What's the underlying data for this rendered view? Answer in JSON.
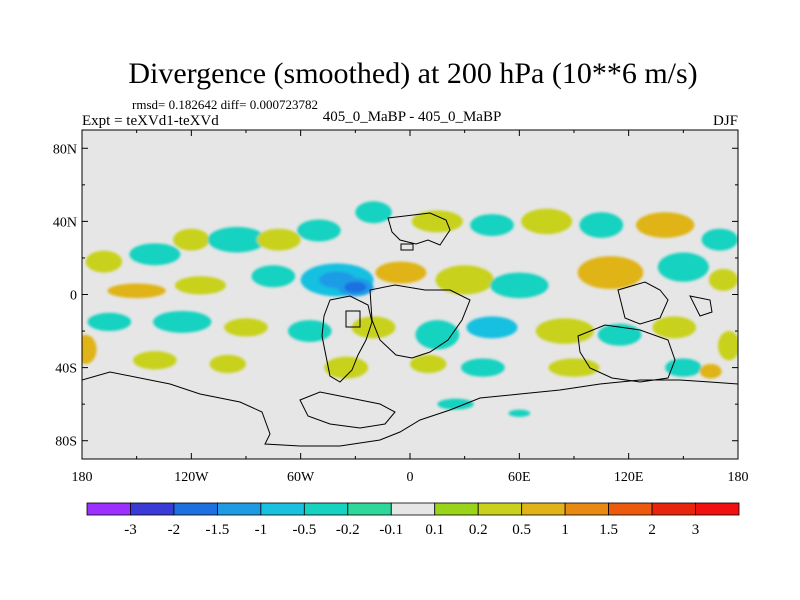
{
  "chart_data": {
    "type": "heatmap",
    "title": "Divergence (smoothed) at 200 hPa (10**6 m/s)",
    "stats_line": "rmsd= 0.182642 diff= 0.000723782",
    "experiment_label": "Expt = teXVd1-teXVd",
    "comparison_label": "405_0_MaBP - 405_0_MaBP",
    "season_label": "DJF",
    "xlim": [
      -180,
      180
    ],
    "ylim": [
      -90,
      90
    ],
    "x_ticks": [
      {
        "lon": -180,
        "label": "180"
      },
      {
        "lon": -120,
        "label": "120W"
      },
      {
        "lon": -60,
        "label": "60W"
      },
      {
        "lon": 0,
        "label": "0"
      },
      {
        "lon": 60,
        "label": "60E"
      },
      {
        "lon": 120,
        "label": "120E"
      },
      {
        "lon": 180,
        "label": "180"
      }
    ],
    "y_ticks": [
      {
        "lat": 80,
        "label": "80N"
      },
      {
        "lat": 40,
        "label": "40N"
      },
      {
        "lat": 0,
        "label": "0"
      },
      {
        "lat": -40,
        "label": "40S"
      },
      {
        "lat": -80,
        "label": "80S"
      }
    ],
    "colorbar": {
      "labels": [
        "-3",
        "-2",
        "-1.5",
        "-1",
        "-0.5",
        "-0.2",
        "-0.1",
        "0.1",
        "0.2",
        "0.5",
        "1",
        "1.5",
        "2",
        "3"
      ],
      "colors": [
        "#9b30ff",
        "#3a3ad6",
        "#1e6fe0",
        "#1f9be6",
        "#19c0e0",
        "#16d2c0",
        "#2ed89a",
        "#e6e6e6",
        "#9ad41a",
        "#c8d21c",
        "#e0b418",
        "#e88a12",
        "#ec5a0e",
        "#e8240c",
        "#f01010"
      ]
    },
    "anomaly_blobs": [
      {
        "lon": -168,
        "lat": 18,
        "rx": 10,
        "ry": 6,
        "value": 0.3
      },
      {
        "lon": -140,
        "lat": 22,
        "rx": 14,
        "ry": 6,
        "value": -0.3
      },
      {
        "lon": -120,
        "lat": 30,
        "rx": 10,
        "ry": 6,
        "value": 0.3
      },
      {
        "lon": -95,
        "lat": 30,
        "rx": 16,
        "ry": 7,
        "value": -0.3
      },
      {
        "lon": -72,
        "lat": 30,
        "rx": 12,
        "ry": 6,
        "value": 0.3
      },
      {
        "lon": -50,
        "lat": 35,
        "rx": 12,
        "ry": 6,
        "value": -0.3
      },
      {
        "lon": -20,
        "lat": 45,
        "rx": 10,
        "ry": 6,
        "value": -0.3
      },
      {
        "lon": 15,
        "lat": 40,
        "rx": 14,
        "ry": 6,
        "value": 0.3
      },
      {
        "lon": 45,
        "lat": 38,
        "rx": 12,
        "ry": 6,
        "value": -0.3
      },
      {
        "lon": 75,
        "lat": 40,
        "rx": 14,
        "ry": 7,
        "value": 0.3
      },
      {
        "lon": 105,
        "lat": 38,
        "rx": 12,
        "ry": 7,
        "value": -0.3
      },
      {
        "lon": 140,
        "lat": 38,
        "rx": 16,
        "ry": 7,
        "value": 0.6
      },
      {
        "lon": 170,
        "lat": 30,
        "rx": 10,
        "ry": 6,
        "value": -0.3
      },
      {
        "lon": -150,
        "lat": 2,
        "rx": 16,
        "ry": 4,
        "value": 0.6
      },
      {
        "lon": -115,
        "lat": 5,
        "rx": 14,
        "ry": 5,
        "value": 0.3
      },
      {
        "lon": -75,
        "lat": 10,
        "rx": 12,
        "ry": 6,
        "value": -0.3
      },
      {
        "lon": -40,
        "lat": 8,
        "rx": 20,
        "ry": 9,
        "value": -0.7
      },
      {
        "lon": -30,
        "lat": 4,
        "rx": 10,
        "ry": 5,
        "value": -1.2
      },
      {
        "lon": -5,
        "lat": 12,
        "rx": 14,
        "ry": 6,
        "value": 0.6
      },
      {
        "lon": 30,
        "lat": 8,
        "rx": 16,
        "ry": 8,
        "value": 0.4
      },
      {
        "lon": 60,
        "lat": 5,
        "rx": 16,
        "ry": 7,
        "value": -0.3
      },
      {
        "lon": 110,
        "lat": 12,
        "rx": 18,
        "ry": 9,
        "value": 0.6
      },
      {
        "lon": 150,
        "lat": 15,
        "rx": 14,
        "ry": 8,
        "value": -0.3
      },
      {
        "lon": 172,
        "lat": 8,
        "rx": 8,
        "ry": 6,
        "value": 0.3
      },
      {
        "lon": -165,
        "lat": -15,
        "rx": 12,
        "ry": 5,
        "value": -0.3
      },
      {
        "lon": -125,
        "lat": -15,
        "rx": 16,
        "ry": 6,
        "value": -0.3
      },
      {
        "lon": -90,
        "lat": -18,
        "rx": 12,
        "ry": 5,
        "value": 0.3
      },
      {
        "lon": -55,
        "lat": -20,
        "rx": 12,
        "ry": 6,
        "value": -0.3
      },
      {
        "lon": -20,
        "lat": -18,
        "rx": 12,
        "ry": 6,
        "value": 0.3
      },
      {
        "lon": 15,
        "lat": -22,
        "rx": 12,
        "ry": 8,
        "value": -0.3
      },
      {
        "lon": 45,
        "lat": -18,
        "rx": 14,
        "ry": 6,
        "value": -0.5
      },
      {
        "lon": 85,
        "lat": -20,
        "rx": 16,
        "ry": 7,
        "value": 0.3
      },
      {
        "lon": 115,
        "lat": -22,
        "rx": 12,
        "ry": 6,
        "value": -0.3
      },
      {
        "lon": 145,
        "lat": -18,
        "rx": 12,
        "ry": 6,
        "value": 0.3
      },
      {
        "lon": 175,
        "lat": -28,
        "rx": 6,
        "ry": 8,
        "value": 0.3
      },
      {
        "lon": -178,
        "lat": -30,
        "rx": 6,
        "ry": 8,
        "value": 0.6
      },
      {
        "lon": -140,
        "lat": -36,
        "rx": 12,
        "ry": 5,
        "value": 0.3
      },
      {
        "lon": -100,
        "lat": -38,
        "rx": 10,
        "ry": 5,
        "value": 0.3
      },
      {
        "lon": -35,
        "lat": -40,
        "rx": 12,
        "ry": 6,
        "value": 0.3
      },
      {
        "lon": 10,
        "lat": -38,
        "rx": 10,
        "ry": 5,
        "value": 0.3
      },
      {
        "lon": 40,
        "lat": -40,
        "rx": 12,
        "ry": 5,
        "value": -0.3
      },
      {
        "lon": 90,
        "lat": -40,
        "rx": 14,
        "ry": 5,
        "value": 0.3
      },
      {
        "lon": 150,
        "lat": -40,
        "rx": 10,
        "ry": 5,
        "value": -0.3
      },
      {
        "lon": 165,
        "lat": -42,
        "rx": 6,
        "ry": 4,
        "value": 0.6
      },
      {
        "lon": 25,
        "lat": -60,
        "rx": 10,
        "ry": 3,
        "value": -0.3
      },
      {
        "lon": 60,
        "lat": -65,
        "rx": 6,
        "ry": 2,
        "value": -0.3
      }
    ]
  }
}
